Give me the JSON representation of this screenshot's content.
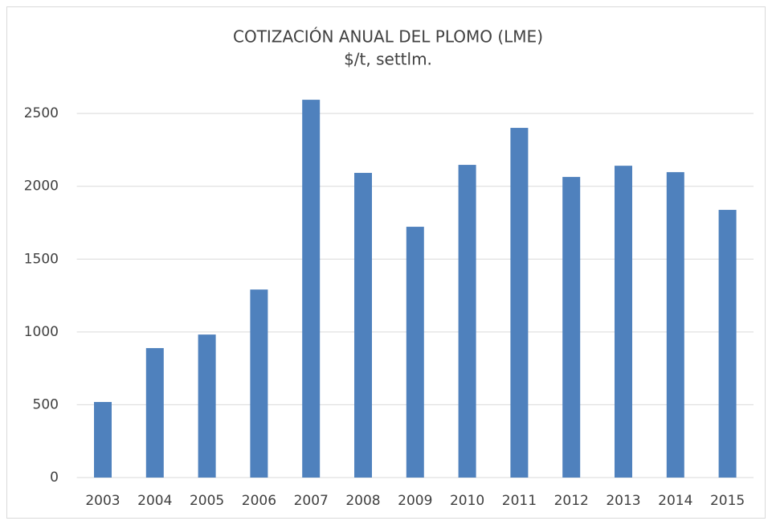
{
  "chart_data": {
    "type": "bar",
    "title": "COTIZACIÓN ANUAL DEL PLOMO (LME)",
    "subtitle": "$/t, settlm.",
    "categories": [
      "2003",
      "2004",
      "2005",
      "2006",
      "2007",
      "2008",
      "2009",
      "2010",
      "2011",
      "2012",
      "2013",
      "2014",
      "2015"
    ],
    "values": [
      519,
      889,
      982,
      1291,
      2594,
      2092,
      1722,
      2147,
      2401,
      2064,
      2141,
      2097,
      1838
    ],
    "color": "#4f81bd",
    "ylim": [
      0,
      2600
    ],
    "yticks": [
      0,
      500,
      1000,
      1500,
      2000,
      2500
    ],
    "grid": true
  }
}
